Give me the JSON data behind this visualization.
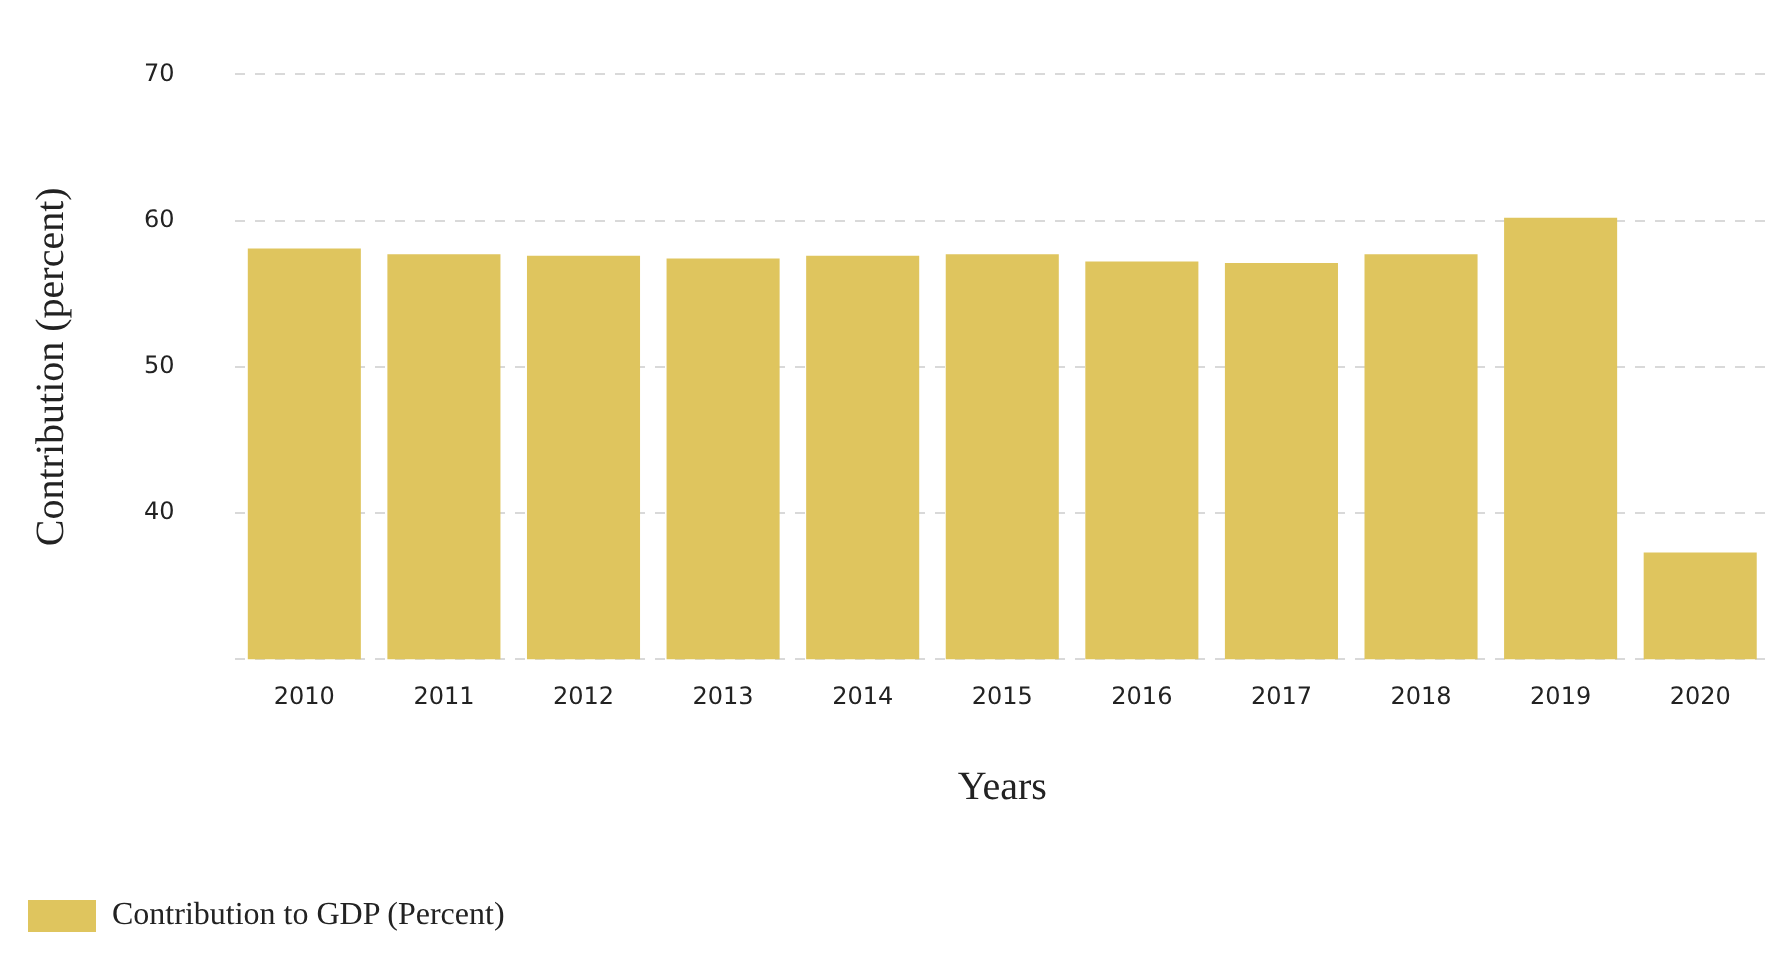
{
  "chart_data": {
    "type": "bar",
    "xlabel": "Years",
    "ylabel": "Contribution (percent)",
    "categories": [
      "2010",
      "2011",
      "2012",
      "2013",
      "2014",
      "2015",
      "2016",
      "2017",
      "2018",
      "2019",
      "2020"
    ],
    "series": [
      {
        "name": "Contribution to GDP (Percent)",
        "color": "#dfc55e",
        "values": [
          58.1,
          57.7,
          57.6,
          57.4,
          57.6,
          57.7,
          57.2,
          57.1,
          57.7,
          60.2,
          37.3
        ]
      }
    ],
    "ylim": [
      30,
      70
    ],
    "yticks": [
      {
        "value": 30,
        "label": null
      },
      40,
      50,
      60,
      70
    ],
    "grid": "y",
    "legend": "bottom left"
  }
}
